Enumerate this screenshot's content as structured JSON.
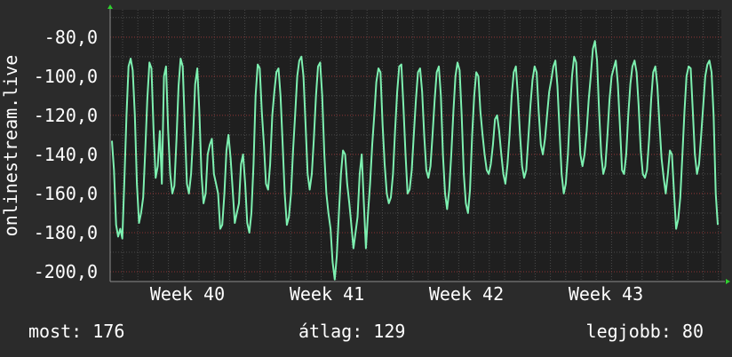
{
  "chart_data": {
    "type": "line",
    "ylabel": "onlinestream.live",
    "ylim": [
      -205,
      -66
    ],
    "yticks": [
      -80,
      -100,
      -120,
      -140,
      -160,
      -180,
      -200
    ],
    "ytick_labels": [
      "-80,0",
      "-100,0",
      "-120,0",
      "-140,0",
      "-160,0",
      "-180,0",
      "-200,0"
    ],
    "xticks": [
      "Week 40",
      "Week 41",
      "Week 42",
      "Week 43"
    ],
    "grid": true,
    "series": [
      {
        "color": "#7df0b0",
        "y": [
          -133,
          -148,
          -176,
          -182,
          -178,
          -183,
          -152,
          -120,
          -95,
          -91,
          -97,
          -120,
          -155,
          -175,
          -170,
          -162,
          -138,
          -112,
          -93,
          -96,
          -128,
          -152,
          -146,
          -128,
          -155,
          -100,
          -95,
          -128,
          -150,
          -160,
          -156,
          -132,
          -105,
          -91,
          -95,
          -125,
          -155,
          -160,
          -150,
          -130,
          -104,
          -96,
          -118,
          -150,
          -165,
          -160,
          -140,
          -135,
          -132,
          -150,
          -155,
          -160,
          -178,
          -176,
          -160,
          -138,
          -130,
          -142,
          -158,
          -175,
          -170,
          -165,
          -145,
          -140,
          -155,
          -175,
          -180,
          -170,
          -145,
          -110,
          -94,
          -96,
          -118,
          -135,
          -155,
          -158,
          -145,
          -120,
          -108,
          -98,
          -96,
          -110,
          -135,
          -160,
          -176,
          -172,
          -160,
          -138,
          -120,
          -100,
          -92,
          -90,
          -100,
          -125,
          -150,
          -158,
          -150,
          -132,
          -110,
          -95,
          -93,
          -110,
          -140,
          -160,
          -170,
          -178,
          -195,
          -204,
          -192,
          -170,
          -150,
          -138,
          -140,
          -155,
          -165,
          -176,
          -188,
          -180,
          -172,
          -150,
          -140,
          -165,
          -188,
          -170,
          -155,
          -135,
          -120,
          -103,
          -96,
          -98,
          -125,
          -145,
          -160,
          -165,
          -162,
          -150,
          -128,
          -108,
          -95,
          -94,
          -115,
          -140,
          -160,
          -158,
          -148,
          -130,
          -112,
          -98,
          -96,
          -108,
          -130,
          -148,
          -152,
          -146,
          -130,
          -112,
          -98,
          -95,
          -110,
          -140,
          -160,
          -168,
          -158,
          -140,
          -118,
          -100,
          -93,
          -97,
          -120,
          -150,
          -165,
          -170,
          -158,
          -130,
          -110,
          -98,
          -100,
          -118,
          -130,
          -140,
          -148,
          -150,
          -145,
          -135,
          -122,
          -120,
          -128,
          -140,
          -150,
          -155,
          -145,
          -130,
          -110,
          -98,
          -95,
          -110,
          -130,
          -146,
          -152,
          -148,
          -132,
          -115,
          -102,
          -95,
          -98,
          -118,
          -135,
          -140,
          -132,
          -120,
          -108,
          -102,
          -95,
          -92,
          -105,
          -128,
          -150,
          -160,
          -155,
          -140,
          -118,
          -100,
          -90,
          -93,
          -118,
          -140,
          -146,
          -140,
          -128,
          -112,
          -100,
          -86,
          -82,
          -92,
          -118,
          -140,
          -150,
          -146,
          -130,
          -112,
          -100,
          -96,
          -92,
          -104,
          -125,
          -148,
          -150,
          -140,
          -120,
          -104,
          -95,
          -92,
          -98,
          -115,
          -138,
          -150,
          -152,
          -148,
          -132,
          -112,
          -98,
          -95,
          -105,
          -125,
          -142,
          -152,
          -160,
          -150,
          -138,
          -140,
          -160,
          -178,
          -173,
          -162,
          -140,
          -118,
          -100,
          -95,
          -96,
          -118,
          -140,
          -150,
          -145,
          -130,
          -115,
          -100,
          -94,
          -92,
          -98,
          -120,
          -160,
          -176
        ]
      }
    ],
    "summary": {
      "most": "most: 176",
      "atlag": "átlag: 129",
      "legjobb": "legjobb: 80"
    }
  }
}
